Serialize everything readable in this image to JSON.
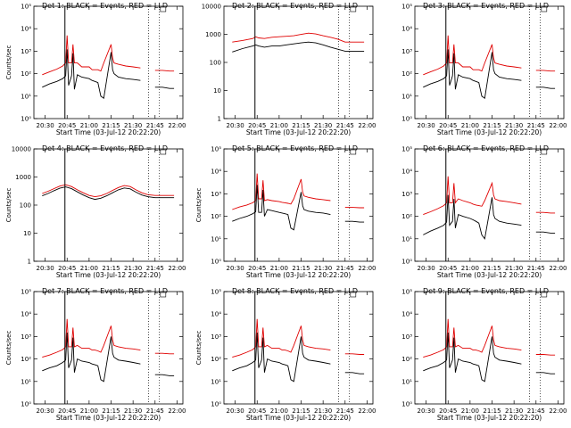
{
  "chart_data": [
    {
      "type": "line",
      "title": "Det 1: BLACK = Events, RED = LLD",
      "xlabel": "Start Time (03-Jul-12 20:22:20)",
      "ylabel": "Counts/sec",
      "yscale": "log",
      "ylim": [
        1,
        100000
      ],
      "yticks": [
        "10⁰",
        "10¹",
        "10²",
        "10³",
        "10⁴",
        "10⁵"
      ],
      "xticks": [
        "20:30",
        "20:45",
        "21:00",
        "21:15",
        "21:30",
        "21:45",
        "22:00"
      ],
      "x": [
        "20:28",
        "20:33",
        "20:38",
        "20:42",
        "20:44",
        "20:45",
        "20:46",
        "20:48",
        "20:49",
        "20:50",
        "20:52",
        "20:55",
        "21:00",
        "21:02",
        "21:04",
        "21:06",
        "21:08",
        "21:10",
        "21:15",
        "21:16",
        "21:17",
        "21:20",
        "21:25",
        "21:30",
        "21:35",
        "21:40",
        "21:45",
        "21:50",
        "21:55",
        "21:58"
      ],
      "series": [
        {
          "name": "LLD",
          "color": "#e00000",
          "values": [
            90,
            120,
            160,
            220,
            300,
            5000,
            300,
            300,
            2000,
            300,
            300,
            200,
            200,
            150,
            150,
            150,
            130,
            300,
            2000,
            500,
            300,
            260,
            220,
            200,
            180,
            null,
            140,
            140,
            130,
            130
          ]
        },
        {
          "name": "Events",
          "color": "#000000",
          "values": [
            25,
            35,
            45,
            60,
            80,
            1200,
            30,
            80,
            800,
            20,
            90,
            70,
            60,
            50,
            45,
            40,
            10,
            8,
            900,
            150,
            100,
            70,
            60,
            55,
            50,
            null,
            25,
            25,
            22,
            22
          ]
        }
      ]
    },
    {
      "type": "line",
      "title": "Det 2: BLACK = Events, RED = LLD",
      "xlabel": "Start Time (03-Jul-12 20:22:20)",
      "ylabel": "",
      "yscale": "log",
      "ylim": [
        1,
        15000
      ],
      "yticks": [
        "1",
        "10",
        "100",
        "1000",
        "10000"
      ],
      "xticks": [
        "20:30",
        "20:45",
        "21:00",
        "21:15",
        "21:30",
        "21:45",
        "22:00"
      ],
      "x": [
        "20:28",
        "20:35",
        "20:42",
        "20:44",
        "20:46",
        "20:50",
        "20:55",
        "21:00",
        "21:05",
        "21:10",
        "21:15",
        "21:20",
        "21:25",
        "21:30",
        "21:35",
        "21:40",
        "21:45",
        "21:50",
        "21:55",
        "21:58"
      ],
      "series": [
        {
          "name": "LLD",
          "color": "#e00000",
          "values": [
            700,
            800,
            950,
            1100,
            1000,
            950,
            1050,
            1100,
            1150,
            1200,
            1350,
            1500,
            1400,
            1200,
            1050,
            900,
            700,
            700,
            700,
            700
          ]
        },
        {
          "name": "Events",
          "color": "#000000",
          "values": [
            300,
            400,
            500,
            550,
            500,
            450,
            500,
            500,
            550,
            600,
            650,
            700,
            650,
            550,
            450,
            380,
            320,
            320,
            320,
            320
          ]
        }
      ]
    },
    {
      "type": "line",
      "title": "Det 3: BLACK = Events, RED = LLD",
      "xlabel": "Start Time (03-Jul-12 20:22:20)",
      "ylabel": "",
      "yscale": "log",
      "ylim": [
        1,
        100000
      ],
      "yticks": [
        "10⁰",
        "10¹",
        "10²",
        "10³",
        "10⁴",
        "10⁵"
      ],
      "xticks": [
        "20:30",
        "20:45",
        "21:00",
        "21:15",
        "21:30",
        "21:45",
        "22:00"
      ],
      "x": [
        "20:28",
        "20:33",
        "20:38",
        "20:42",
        "20:44",
        "20:45",
        "20:46",
        "20:48",
        "20:49",
        "20:50",
        "20:52",
        "20:55",
        "21:00",
        "21:02",
        "21:04",
        "21:06",
        "21:08",
        "21:10",
        "21:15",
        "21:16",
        "21:17",
        "21:20",
        "21:25",
        "21:30",
        "21:35",
        "21:40",
        "21:45",
        "21:50",
        "21:55",
        "21:58"
      ],
      "series": [
        {
          "name": "LLD",
          "color": "#e00000",
          "values": [
            90,
            120,
            160,
            220,
            300,
            5000,
            300,
            300,
            2000,
            300,
            300,
            200,
            200,
            150,
            150,
            150,
            130,
            300,
            2000,
            500,
            300,
            260,
            220,
            200,
            180,
            null,
            140,
            140,
            130,
            130
          ]
        },
        {
          "name": "Events",
          "color": "#000000",
          "values": [
            25,
            35,
            45,
            60,
            80,
            1200,
            30,
            80,
            800,
            20,
            90,
            70,
            60,
            50,
            45,
            40,
            10,
            8,
            900,
            150,
            100,
            70,
            60,
            55,
            50,
            null,
            25,
            25,
            22,
            22
          ]
        }
      ]
    },
    {
      "type": "line",
      "title": "Det 4: BLACK = Events, RED = LLD",
      "xlabel": "Start Time (03-Jul-12 20:22:20)",
      "ylabel": "Counts/sec",
      "yscale": "log",
      "ylim": [
        1,
        15000
      ],
      "yticks": [
        "1",
        "10",
        "100",
        "1000",
        "10000"
      ],
      "xticks": [
        "20:30",
        "20:45",
        "21:00",
        "21:15",
        "21:30",
        "21:45",
        "22:00"
      ],
      "x": [
        "20:28",
        "20:32",
        "20:36",
        "20:40",
        "20:44",
        "20:48",
        "20:52",
        "20:56",
        "21:00",
        "21:04",
        "21:08",
        "21:12",
        "21:16",
        "21:20",
        "21:24",
        "21:28",
        "21:32",
        "21:36",
        "21:40",
        "21:45",
        "21:50",
        "21:55",
        "21:58"
      ],
      "series": [
        {
          "name": "LLD",
          "color": "#e00000",
          "values": [
            330,
            400,
            500,
            620,
            700,
            600,
            450,
            350,
            280,
            250,
            270,
            330,
            430,
            550,
            650,
            600,
            450,
            350,
            300,
            280,
            280,
            280,
            280
          ]
        },
        {
          "name": "Events",
          "color": "#000000",
          "values": [
            270,
            330,
            420,
            520,
            580,
            500,
            380,
            290,
            230,
            200,
            220,
            270,
            350,
            450,
            530,
            490,
            370,
            290,
            250,
            230,
            230,
            230,
            230
          ]
        }
      ]
    },
    {
      "type": "line",
      "title": "Det 5: BLACK = Events, RED = LLD",
      "xlabel": "Start Time (03-Jul-12 20:22:20)",
      "ylabel": "Counts/sec",
      "yscale": "log",
      "ylim": [
        1,
        100000
      ],
      "yticks": [
        "10⁰",
        "10¹",
        "10²",
        "10³",
        "10⁴",
        "10⁵"
      ],
      "xticks": [
        "20:30",
        "20:45",
        "21:00",
        "21:15",
        "21:30",
        "21:45",
        "22:00"
      ],
      "x": [
        "20:28",
        "20:33",
        "20:38",
        "20:42",
        "20:44",
        "20:45",
        "20:46",
        "20:48",
        "20:49",
        "20:50",
        "20:52",
        "20:55",
        "21:00",
        "21:02",
        "21:04",
        "21:06",
        "21:08",
        "21:10",
        "21:15",
        "21:16",
        "21:17",
        "21:20",
        "21:25",
        "21:30",
        "21:35",
        "21:40",
        "21:45",
        "21:50",
        "21:55",
        "21:58"
      ],
      "series": [
        {
          "name": "LLD",
          "color": "#e00000",
          "values": [
            200,
            260,
            320,
            400,
            500,
            8000,
            600,
            600,
            4000,
            500,
            550,
            500,
            450,
            420,
            400,
            380,
            350,
            600,
            4500,
            1200,
            800,
            700,
            600,
            550,
            500,
            null,
            250,
            250,
            240,
            240
          ]
        },
        {
          "name": "Events",
          "color": "#000000",
          "values": [
            60,
            80,
            100,
            130,
            160,
            2500,
            150,
            150,
            1500,
            100,
            200,
            180,
            150,
            140,
            130,
            120,
            30,
            25,
            1200,
            300,
            200,
            170,
            150,
            140,
            120,
            null,
            60,
            60,
            55,
            55
          ]
        }
      ]
    },
    {
      "type": "line",
      "title": "Det 6: BLACK = Events, RED = LLD",
      "xlabel": "Start Time (03-Jul-12 20:22:20)",
      "ylabel": "",
      "yscale": "log",
      "ylim": [
        1,
        100000
      ],
      "yticks": [
        "10⁰",
        "10¹",
        "10²",
        "10³",
        "10⁴",
        "10⁵"
      ],
      "xticks": [
        "20:30",
        "20:45",
        "21:00",
        "21:15",
        "21:30",
        "21:45",
        "22:00"
      ],
      "x": [
        "20:28",
        "20:33",
        "20:38",
        "20:42",
        "20:44",
        "20:45",
        "20:46",
        "20:48",
        "20:49",
        "20:50",
        "20:52",
        "20:55",
        "21:00",
        "21:02",
        "21:04",
        "21:06",
        "21:08",
        "21:10",
        "21:15",
        "21:16",
        "21:17",
        "21:20",
        "21:25",
        "21:30",
        "21:35",
        "21:40",
        "21:45",
        "21:50",
        "21:55",
        "21:58"
      ],
      "series": [
        {
          "name": "LLD",
          "color": "#e00000",
          "values": [
            120,
            160,
            220,
            300,
            400,
            6000,
            400,
            400,
            3000,
            400,
            600,
            500,
            400,
            350,
            320,
            300,
            280,
            500,
            3000,
            900,
            600,
            500,
            450,
            400,
            350,
            null,
            150,
            150,
            140,
            140
          ]
        },
        {
          "name": "Events",
          "color": "#000000",
          "values": [
            15,
            22,
            30,
            40,
            55,
            900,
            40,
            60,
            600,
            30,
            120,
            100,
            80,
            70,
            60,
            50,
            15,
            10,
            700,
            120,
            80,
            60,
            50,
            45,
            40,
            null,
            20,
            20,
            18,
            18
          ]
        }
      ]
    },
    {
      "type": "line",
      "title": "Det 7: BLACK = Events, RED = LLD",
      "xlabel": "Start Time (03-Jul-12 20:22:20)",
      "ylabel": "Counts/sec",
      "yscale": "log",
      "ylim": [
        1,
        100000
      ],
      "yticks": [
        "10⁰",
        "10¹",
        "10²",
        "10³",
        "10⁴",
        "10⁵"
      ],
      "xticks": [
        "20:30",
        "20:45",
        "21:00",
        "21:15",
        "21:30",
        "21:45",
        "22:00"
      ],
      "x": [
        "20:28",
        "20:33",
        "20:38",
        "20:42",
        "20:44",
        "20:45",
        "20:46",
        "20:48",
        "20:49",
        "20:50",
        "20:52",
        "20:55",
        "21:00",
        "21:02",
        "21:04",
        "21:06",
        "21:08",
        "21:10",
        "21:15",
        "21:16",
        "21:17",
        "21:20",
        "21:25",
        "21:30",
        "21:35",
        "21:40",
        "21:45",
        "21:50",
        "21:55",
        "21:58"
      ],
      "series": [
        {
          "name": "LLD",
          "color": "#e00000",
          "values": [
            120,
            150,
            200,
            260,
            350,
            6000,
            350,
            350,
            2500,
            350,
            400,
            300,
            300,
            250,
            250,
            230,
            200,
            400,
            3000,
            700,
            400,
            350,
            300,
            280,
            250,
            null,
            180,
            180,
            170,
            170
          ]
        },
        {
          "name": "Events",
          "color": "#000000",
          "values": [
            30,
            40,
            50,
            70,
            90,
            1500,
            40,
            90,
            900,
            25,
            100,
            80,
            70,
            60,
            55,
            50,
            12,
            10,
            1000,
            180,
            120,
            90,
            80,
            70,
            60,
            null,
            20,
            20,
            18,
            18
          ]
        }
      ]
    },
    {
      "type": "line",
      "title": "Det 8: BLACK = Events, RED = LLD",
      "xlabel": "Start Time (03-Jul-12 20:22:20)",
      "ylabel": "Counts/sec",
      "yscale": "log",
      "ylim": [
        1,
        100000
      ],
      "yticks": [
        "10⁰",
        "10¹",
        "10²",
        "10³",
        "10⁴",
        "10⁵"
      ],
      "xticks": [
        "20:30",
        "20:45",
        "21:00",
        "21:15",
        "21:30",
        "21:45",
        "22:00"
      ],
      "x": [
        "20:28",
        "20:33",
        "20:38",
        "20:42",
        "20:44",
        "20:45",
        "20:46",
        "20:48",
        "20:49",
        "20:50",
        "20:52",
        "20:55",
        "21:00",
        "21:02",
        "21:04",
        "21:06",
        "21:08",
        "21:10",
        "21:15",
        "21:16",
        "21:17",
        "21:20",
        "21:25",
        "21:30",
        "21:35",
        "21:40",
        "21:45",
        "21:50",
        "21:55",
        "21:58"
      ],
      "series": [
        {
          "name": "LLD",
          "color": "#e00000",
          "values": [
            120,
            150,
            200,
            260,
            350,
            6000,
            350,
            350,
            2500,
            350,
            400,
            300,
            300,
            250,
            250,
            230,
            200,
            400,
            3000,
            700,
            400,
            350,
            300,
            280,
            250,
            null,
            170,
            170,
            160,
            160
          ]
        },
        {
          "name": "Events",
          "color": "#000000",
          "values": [
            30,
            40,
            50,
            70,
            90,
            1500,
            40,
            90,
            900,
            25,
            100,
            80,
            70,
            60,
            55,
            50,
            12,
            10,
            1000,
            180,
            120,
            90,
            80,
            70,
            60,
            null,
            25,
            25,
            22,
            22
          ]
        }
      ]
    },
    {
      "type": "line",
      "title": "Det 9: BLACK = Events, RED = LLD",
      "xlabel": "Start Time (03-Jul-12 20:22:20)",
      "ylabel": "",
      "yscale": "log",
      "ylim": [
        1,
        100000
      ],
      "yticks": [
        "10⁰",
        "10¹",
        "10²",
        "10³",
        "10⁴",
        "10⁵"
      ],
      "xticks": [
        "20:30",
        "20:45",
        "21:00",
        "21:15",
        "21:30",
        "21:45",
        "22:00"
      ],
      "x": [
        "20:28",
        "20:33",
        "20:38",
        "20:42",
        "20:44",
        "20:45",
        "20:46",
        "20:48",
        "20:49",
        "20:50",
        "20:52",
        "20:55",
        "21:00",
        "21:02",
        "21:04",
        "21:06",
        "21:08",
        "21:10",
        "21:15",
        "21:16",
        "21:17",
        "21:20",
        "21:25",
        "21:30",
        "21:35",
        "21:40",
        "21:45",
        "21:50",
        "21:55",
        "21:58"
      ],
      "series": [
        {
          "name": "LLD",
          "color": "#e00000",
          "values": [
            120,
            150,
            200,
            260,
            350,
            6000,
            350,
            350,
            2500,
            350,
            400,
            300,
            300,
            250,
            250,
            230,
            200,
            400,
            3000,
            700,
            400,
            350,
            300,
            280,
            250,
            null,
            160,
            160,
            150,
            150
          ]
        },
        {
          "name": "Events",
          "color": "#000000",
          "values": [
            30,
            40,
            50,
            70,
            90,
            1500,
            40,
            90,
            900,
            25,
            100,
            80,
            70,
            60,
            55,
            50,
            12,
            10,
            1000,
            180,
            120,
            90,
            80,
            70,
            60,
            null,
            25,
            25,
            22,
            22
          ]
        }
      ]
    }
  ]
}
